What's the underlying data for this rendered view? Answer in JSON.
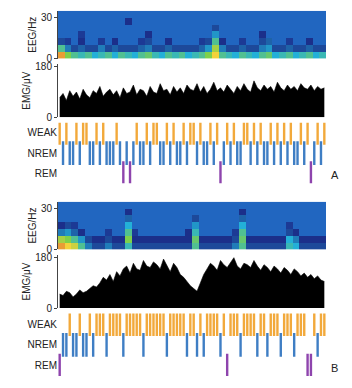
{
  "chart_data": [
    {
      "type": "sleep_panel",
      "label": "A",
      "eeg": {
        "type": "heatmap",
        "ylabel": "EEG/Hz",
        "ylim": [
          0,
          35
        ],
        "yticks": [
          0,
          30
        ],
        "tick_labels": "y",
        "y": [
          2.5,
          7.5,
          12.5,
          17.5,
          22.5,
          27.5,
          32.5
        ],
        "zlim": [
          0,
          1
        ],
        "z": [
          [
            0.9,
            0.7,
            0.6,
            0.55,
            0.6,
            0.5,
            0.55,
            0.6,
            0.5,
            0.6,
            0.55,
            0.5,
            0.6,
            0.65,
            0.55,
            0.5,
            0.6,
            0.55,
            0.6,
            0.5,
            0.55,
            0.6,
            0.7,
            0.85,
            0.6,
            0.55,
            0.5,
            0.6,
            0.55,
            0.5,
            0.6,
            0.65,
            0.5,
            0.55,
            0.6,
            0.5,
            0.55,
            0.6,
            0.5,
            0.55
          ],
          [
            0.6,
            0.4,
            0.3,
            0.35,
            0.3,
            0.3,
            0.4,
            0.3,
            0.35,
            0.3,
            0.3,
            0.3,
            0.35,
            0.4,
            0.3,
            0.3,
            0.35,
            0.3,
            0.3,
            0.3,
            0.3,
            0.35,
            0.45,
            0.75,
            0.4,
            0.3,
            0.3,
            0.35,
            0.3,
            0.3,
            0.4,
            0.45,
            0.3,
            0.3,
            0.35,
            0.3,
            0.3,
            0.35,
            0.3,
            0.3
          ],
          [
            0.3,
            0.2,
            0,
            0.25,
            0,
            0,
            0.2,
            0,
            0.25,
            0,
            0,
            0,
            0.2,
            0.3,
            0,
            0,
            0.25,
            0,
            0,
            0,
            0,
            0.2,
            0.3,
            0.6,
            0.25,
            0,
            0,
            0.2,
            0,
            0,
            0.3,
            0.35,
            0,
            0,
            0.2,
            0,
            0,
            0.25,
            0,
            0
          ],
          [
            0,
            0,
            0,
            0.2,
            0,
            0,
            0,
            0,
            0,
            0,
            0,
            0,
            0,
            0.25,
            0,
            0,
            0,
            0,
            0,
            0,
            0,
            0,
            0,
            0.45,
            0,
            0,
            0,
            0,
            0,
            0,
            0.25,
            0,
            0,
            0,
            0,
            0,
            0,
            0,
            0,
            0
          ],
          [
            0,
            0,
            0,
            0,
            0,
            0,
            0,
            0,
            0,
            0,
            0,
            0,
            0,
            0,
            0,
            0,
            0,
            0,
            0,
            0,
            0,
            0,
            0,
            0.3,
            0,
            0,
            0,
            0,
            0,
            0,
            0,
            0,
            0,
            0,
            0,
            0,
            0,
            0,
            0,
            0
          ],
          [
            0,
            0,
            0,
            0,
            0,
            0,
            0,
            0,
            0,
            0,
            0.25,
            0,
            0,
            0,
            0,
            0,
            0,
            0,
            0,
            0,
            0,
            0,
            0,
            0,
            0,
            0,
            0,
            0,
            0,
            0,
            0,
            0,
            0,
            0,
            0,
            0,
            0,
            0,
            0,
            0
          ],
          [
            0,
            0,
            0,
            0,
            0,
            0,
            0,
            0,
            0,
            0,
            0,
            0,
            0,
            0,
            0,
            0,
            0,
            0,
            0,
            0,
            0,
            0,
            0,
            0,
            0,
            0,
            0,
            0,
            0,
            0,
            0,
            0,
            0,
            0,
            0,
            0,
            0,
            0,
            0,
            0
          ]
        ]
      },
      "emg": {
        "type": "area",
        "ylabel": "EMG/μV",
        "ylim": [
          0,
          190
        ],
        "yticks": [
          0,
          180
        ],
        "tick_labels": "y",
        "color": "#000000",
        "values": [
          70,
          85,
          60,
          95,
          75,
          90,
          65,
          100,
          80,
          70,
          95,
          85,
          110,
          75,
          90,
          100,
          80,
          95,
          70,
          105,
          85,
          90,
          115,
          80,
          100,
          95,
          75,
          110,
          90,
          85,
          120,
          95,
          100,
          80,
          110,
          90,
          105,
          85,
          115,
          100,
          95,
          120,
          90,
          110,
          85,
          100,
          125,
          95,
          105,
          90,
          115,
          100,
          85,
          110,
          95,
          120,
          100,
          90,
          130,
          105,
          95,
          115,
          100,
          110,
          90,
          125,
          105,
          95,
          115,
          100,
          110,
          95,
          120,
          105,
          100,
          115,
          95,
          110,
          100,
          105
        ]
      },
      "states": {
        "type": "raster",
        "tick_labels": "y",
        "series": [
          {
            "name": "WEAK",
            "color": "#f2a93b"
          },
          {
            "name": "NREM",
            "color": "#3f7ec4"
          },
          {
            "name": "REM",
            "color": "#8e44ad"
          }
        ],
        "values": [
          "WEAK",
          "NREM",
          "WEAK",
          "NREM",
          "NREM",
          "WEAK",
          "NREM",
          "WEAK",
          "WEAK",
          "NREM",
          "NREM",
          "WEAK",
          "NREM",
          "WEAK",
          "NREM",
          "NREM",
          "NREM",
          "WEAK",
          "NREM",
          "REM",
          "NREM",
          "REM",
          "NREM",
          "WEAK",
          "NREM",
          "NREM",
          "WEAK",
          "NREM",
          "WEAK",
          "WEAK",
          "NREM",
          "NREM",
          "WEAK",
          "NREM",
          "WEAK",
          "NREM",
          "NREM",
          "WEAK",
          "NREM",
          "WEAK",
          "WEAK",
          "NREM",
          "WEAK",
          "NREM",
          "NREM",
          "WEAK",
          "NREM",
          "WEAK",
          "REM",
          "NREM",
          "WEAK",
          "NREM",
          "WEAK",
          "NREM",
          "NREM",
          "WEAK",
          "WEAK",
          "NREM",
          "WEAK",
          "NREM",
          "WEAK",
          "NREM",
          "NREM",
          "WEAK",
          "NREM",
          "WEAK",
          "NREM",
          "WEAK",
          "NREM",
          "WEAK",
          "NREM",
          "NREM",
          "WEAK",
          "NREM",
          "WEAK",
          "REM",
          "NREM",
          "WEAK",
          "NREM",
          "WEAK"
        ]
      }
    },
    {
      "type": "sleep_panel",
      "label": "B",
      "eeg": {
        "type": "heatmap",
        "ylabel": "EEG/Hz",
        "ylim": [
          0,
          35
        ],
        "yticks": [
          0,
          30
        ],
        "tick_labels": "y",
        "y": [
          2.5,
          7.5,
          12.5,
          17.5,
          22.5,
          27.5,
          32.5
        ],
        "zlim": [
          0,
          1
        ],
        "z": [
          [
            0.9,
            0.85,
            0.8,
            0.6,
            0.4,
            0.3,
            0.3,
            0.4,
            0.3,
            0.3,
            0.55,
            0.3,
            0.3,
            0.3,
            0.3,
            0.3,
            0.3,
            0.3,
            0.3,
            0.3,
            0.6,
            0.3,
            0.3,
            0.3,
            0.3,
            0.3,
            0.4,
            0.6,
            0.3,
            0.3,
            0.3,
            0.3,
            0.3,
            0.3,
            0.55,
            0.5,
            0.3,
            0.3,
            0.3,
            0.3
          ],
          [
            0.75,
            0.7,
            0.6,
            0.45,
            0.3,
            0.25,
            0.25,
            0.3,
            0.25,
            0.25,
            0.7,
            0.25,
            0.25,
            0.25,
            0.25,
            0.25,
            0.25,
            0.25,
            0.25,
            0.25,
            0.65,
            0.25,
            0.25,
            0.25,
            0.25,
            0.25,
            0.3,
            0.65,
            0.25,
            0.25,
            0.25,
            0.25,
            0.25,
            0.25,
            0.5,
            0.4,
            0.25,
            0.25,
            0.25,
            0.25
          ],
          [
            0.4,
            0.45,
            0.35,
            0.25,
            0,
            0,
            0,
            0.2,
            0,
            0,
            0.6,
            0.2,
            0,
            0,
            0,
            0,
            0,
            0,
            0,
            0.25,
            0.55,
            0,
            0,
            0,
            0,
            0,
            0.2,
            0.6,
            0,
            0,
            0,
            0,
            0,
            0,
            0.3,
            0.25,
            0,
            0,
            0,
            0
          ],
          [
            0.25,
            0.3,
            0.2,
            0,
            0,
            0,
            0,
            0,
            0,
            0,
            0.5,
            0,
            0,
            0,
            0,
            0,
            0,
            0,
            0,
            0,
            0.45,
            0,
            0,
            0,
            0,
            0,
            0,
            0.5,
            0,
            0,
            0,
            0,
            0,
            0,
            0.2,
            0,
            0,
            0,
            0,
            0
          ],
          [
            0,
            0,
            0,
            0,
            0,
            0,
            0,
            0,
            0,
            0,
            0.35,
            0,
            0,
            0,
            0,
            0,
            0,
            0,
            0,
            0,
            0.3,
            0,
            0,
            0,
            0,
            0,
            0,
            0.35,
            0,
            0,
            0,
            0,
            0,
            0,
            0,
            0,
            0,
            0,
            0,
            0
          ],
          [
            0,
            0,
            0,
            0,
            0,
            0,
            0,
            0,
            0,
            0,
            0.25,
            0,
            0,
            0,
            0,
            0,
            0,
            0,
            0,
            0,
            0,
            0,
            0,
            0,
            0,
            0,
            0,
            0.25,
            0,
            0,
            0,
            0,
            0,
            0,
            0,
            0,
            0,
            0,
            0,
            0
          ],
          [
            0,
            0,
            0,
            0,
            0,
            0,
            0,
            0,
            0,
            0,
            0,
            0,
            0,
            0,
            0,
            0,
            0,
            0,
            0,
            0,
            0,
            0,
            0,
            0,
            0,
            0,
            0,
            0,
            0,
            0,
            0,
            0,
            0,
            0,
            0,
            0,
            0,
            0,
            0,
            0
          ]
        ]
      },
      "emg": {
        "type": "area",
        "ylabel": "EMG/μV",
        "ylim": [
          0,
          190
        ],
        "yticks": [
          0,
          180
        ],
        "tick_labels": "y",
        "color": "#000000",
        "values": [
          50,
          45,
          60,
          55,
          40,
          50,
          65,
          55,
          60,
          70,
          80,
          75,
          90,
          110,
          100,
          120,
          95,
          130,
          115,
          140,
          150,
          125,
          160,
          140,
          135,
          170,
          150,
          145,
          165,
          155,
          140,
          175,
          150,
          130,
          160,
          145,
          120,
          110,
          95,
          80,
          70,
          60,
          90,
          120,
          140,
          160,
          150,
          135,
          170,
          155,
          145,
          165,
          180,
          150,
          140,
          160,
          155,
          145,
          170,
          150,
          135,
          155,
          145,
          130,
          150,
          140,
          125,
          145,
          135,
          120,
          140,
          130,
          115,
          125,
          110,
          120,
          105,
          115,
          100,
          95
        ]
      },
      "states": {
        "type": "raster",
        "tick_labels": "y",
        "series": [
          {
            "name": "WEAK",
            "color": "#f2a93b"
          },
          {
            "name": "NREM",
            "color": "#3f7ec4"
          },
          {
            "name": "REM",
            "color": "#8e44ad"
          }
        ],
        "values": [
          "REM",
          "NREM",
          "NREM",
          "WEAK",
          "NREM",
          "NREM",
          "WEAK",
          "NREM",
          "NREM",
          "WEAK",
          "NREM",
          "WEAK",
          "WEAK",
          "WEAK",
          "NREM",
          "WEAK",
          "WEAK",
          "WEAK",
          "WEAK",
          "NREM",
          "WEAK",
          "WEAK",
          "WEAK",
          "WEAK",
          "WEAK",
          "NREM",
          "WEAK",
          "WEAK",
          "WEAK",
          "WEAK",
          "WEAK",
          "WEAK",
          "NREM",
          "WEAK",
          "WEAK",
          "WEAK",
          "WEAK",
          "WEAK",
          "NREM",
          "WEAK",
          "WEAK",
          "NREM",
          "WEAK",
          "NREM",
          "WEAK",
          "WEAK",
          "WEAK",
          "WEAK",
          "NREM",
          "WEAK",
          "REM",
          "WEAK",
          "WEAK",
          "WEAK",
          "NREM",
          "WEAK",
          "WEAK",
          "WEAK",
          "WEAK",
          "NREM",
          "WEAK",
          "WEAK",
          "NREM",
          "WEAK",
          "WEAK",
          "WEAK",
          "NREM",
          "WEAK",
          "WEAK",
          "WEAK",
          "NREM",
          "WEAK",
          "WEAK",
          "WEAK",
          "REM",
          "REM",
          "WEAK",
          "NREM",
          "WEAK",
          "WEAK"
        ]
      }
    }
  ]
}
